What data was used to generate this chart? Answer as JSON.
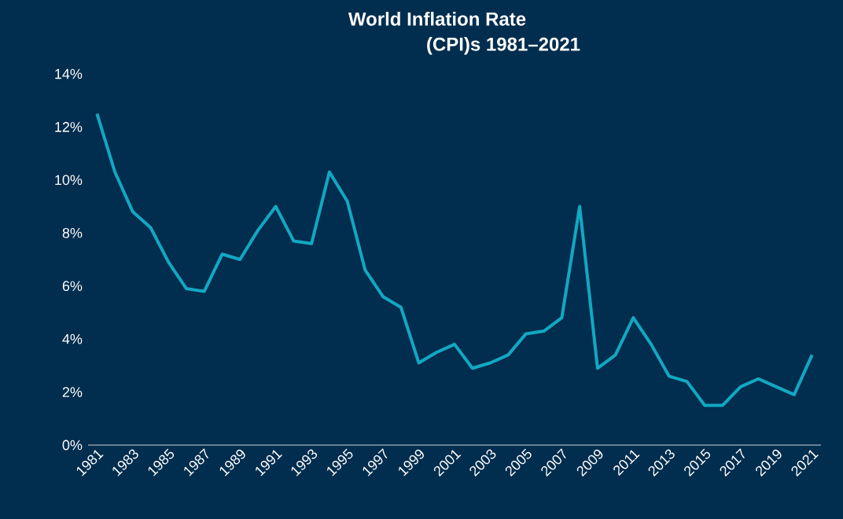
{
  "chart_data": {
    "type": "line",
    "title": "World Inflation Rate",
    "subtitle": "(CPI)s 1981–2021",
    "x": [
      1981,
      1982,
      1983,
      1984,
      1985,
      1986,
      1987,
      1988,
      1989,
      1990,
      1991,
      1992,
      1993,
      1994,
      1995,
      1996,
      1997,
      1998,
      1999,
      2000,
      2001,
      2002,
      2003,
      2004,
      2005,
      2006,
      2007,
      2008,
      2009,
      2010,
      2011,
      2012,
      2013,
      2014,
      2015,
      2016,
      2017,
      2018,
      2019,
      2020,
      2021
    ],
    "series": [
      {
        "color": "#12a8c2",
        "values": [
          12.5,
          10.3,
          8.8,
          8.2,
          6.9,
          5.9,
          5.8,
          7.2,
          7.0,
          8.1,
          9.0,
          7.7,
          7.6,
          10.3,
          9.2,
          6.6,
          5.6,
          5.2,
          3.1,
          3.5,
          3.8,
          2.9,
          3.1,
          3.4,
          4.2,
          4.3,
          4.8,
          9.0,
          2.9,
          3.4,
          4.8,
          3.8,
          2.6,
          2.4,
          1.5,
          1.5,
          2.2,
          2.5,
          2.2,
          1.9,
          3.4
        ]
      }
    ],
    "xlim": [
      1980.5,
      2021.5
    ],
    "xticks": [
      1981,
      1983,
      1985,
      1987,
      1989,
      1991,
      1993,
      1995,
      1997,
      1999,
      2001,
      2003,
      2005,
      2007,
      2009,
      2011,
      2013,
      2015,
      2017,
      2019,
      2021
    ],
    "ylim": [
      0,
      14
    ],
    "yticks": [
      {
        "value": 0,
        "label": "0%"
      },
      {
        "value": 2,
        "label": "2%"
      },
      {
        "value": 4,
        "label": "4%"
      },
      {
        "value": 6,
        "label": "6%"
      },
      {
        "value": 8,
        "label": "8%"
      },
      {
        "value": 10,
        "label": "10%"
      },
      {
        "value": 12,
        "label": "12%"
      },
      {
        "value": 14,
        "label": "14%"
      }
    ],
    "grid": false,
    "marker": "none",
    "line_style": "solid"
  }
}
